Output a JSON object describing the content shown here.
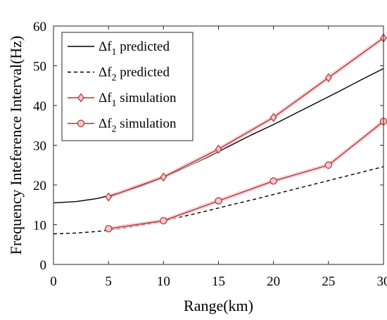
{
  "chart_data": {
    "type": "line",
    "xlabel": "Range(km)",
    "ylabel": "Frequency Inteference Interval(Hz)",
    "xlim": [
      0,
      30
    ],
    "ylim": [
      0,
      60
    ],
    "xticks": [
      0,
      5,
      10,
      15,
      20,
      25,
      30
    ],
    "yticks": [
      0,
      10,
      20,
      30,
      40,
      50,
      60
    ],
    "grid": false,
    "legend_position": "top-left",
    "colors": {
      "predicted": "#000000",
      "simulation": "#b5332a",
      "marker_halo": "#f2c6d0"
    },
    "series": [
      {
        "name": "Δf1 predicted",
        "legend_base": "Δf",
        "legend_sub": "1",
        "legend_rest": " predicted",
        "style": "solid",
        "marker": "none",
        "color": "#000000",
        "x": [
          0,
          2,
          4,
          6,
          8,
          10,
          12,
          14,
          16,
          18,
          20,
          22,
          24,
          26,
          28,
          30
        ],
        "values": [
          15.5,
          15.8,
          16.6,
          18.0,
          19.8,
          22.0,
          24.4,
          27.0,
          29.8,
          32.6,
          35.2,
          38.0,
          40.8,
          43.6,
          46.5,
          49.3
        ]
      },
      {
        "name": "Δf2 predicted",
        "legend_base": "Δf",
        "legend_sub": "2",
        "legend_rest": " predicted",
        "style": "dashed",
        "marker": "none",
        "color": "#000000",
        "x": [
          0,
          2,
          4,
          6,
          8,
          10,
          12,
          14,
          16,
          18,
          20,
          22,
          24,
          26,
          28,
          30
        ],
        "values": [
          7.7,
          7.9,
          8.3,
          9.0,
          9.9,
          11.0,
          12.2,
          13.5,
          14.9,
          16.2,
          17.6,
          19.0,
          20.4,
          21.8,
          23.2,
          24.6
        ]
      },
      {
        "name": "Δf1 simulation",
        "legend_base": "Δf",
        "legend_sub": "1",
        "legend_rest": " simulation",
        "style": "solid",
        "marker": "diamond",
        "color": "#b5332a",
        "x": [
          5,
          10,
          15,
          20,
          25,
          30
        ],
        "values": [
          17,
          22,
          29,
          37,
          47,
          57
        ]
      },
      {
        "name": "Δf2 simulation",
        "legend_base": "Δf",
        "legend_sub": "2",
        "legend_rest": " simulation",
        "style": "solid",
        "marker": "circle",
        "color": "#b5332a",
        "x": [
          5,
          10,
          15,
          20,
          25,
          30
        ],
        "values": [
          9,
          11,
          16,
          21,
          25,
          36
        ]
      }
    ]
  }
}
